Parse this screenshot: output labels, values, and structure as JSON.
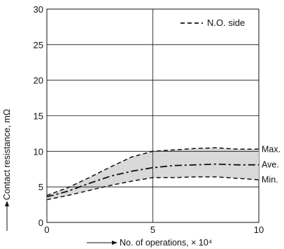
{
  "chart_data": {
    "type": "line",
    "title": "",
    "xlabel": "No. of operations, × 10⁴",
    "ylabel": "Contact resistance, mΩ",
    "xlim": [
      0,
      10
    ],
    "ylim": [
      0,
      30
    ],
    "xticks": [
      "0",
      "5",
      "10"
    ],
    "yticks": [
      "0",
      "5",
      "10",
      "15",
      "20",
      "25",
      "30"
    ],
    "grid": true,
    "legend": {
      "label": "N.O. side",
      "position": "top-right"
    },
    "band": {
      "upper_series": "Max.",
      "lower_series": "Min.",
      "fill": "#d9d9d9"
    },
    "series": [
      {
        "name": "Max.",
        "style": "dashed",
        "x": [
          0,
          1,
          2,
          3,
          4,
          5,
          6,
          7,
          8,
          9,
          10
        ],
        "values": [
          3.8,
          4.9,
          6.3,
          7.8,
          9.2,
          10.0,
          10.2,
          10.4,
          10.5,
          10.3,
          10.3
        ]
      },
      {
        "name": "Ave.",
        "style": "dashdot",
        "x": [
          0,
          1,
          2,
          3,
          4,
          5,
          6,
          7,
          8,
          9,
          10
        ],
        "values": [
          3.6,
          4.4,
          5.5,
          6.5,
          7.2,
          7.7,
          8.0,
          8.1,
          8.2,
          8.1,
          8.1
        ]
      },
      {
        "name": "Min.",
        "style": "dashed",
        "x": [
          0,
          1,
          2,
          3,
          4,
          5,
          6,
          7,
          8,
          9,
          10
        ],
        "values": [
          3.2,
          3.8,
          4.5,
          5.2,
          5.8,
          6.3,
          6.3,
          6.4,
          6.4,
          6.2,
          6.0
        ]
      }
    ]
  },
  "colors": {
    "line": "#111111",
    "band": "#d9d9d9",
    "grid": "#111111"
  }
}
